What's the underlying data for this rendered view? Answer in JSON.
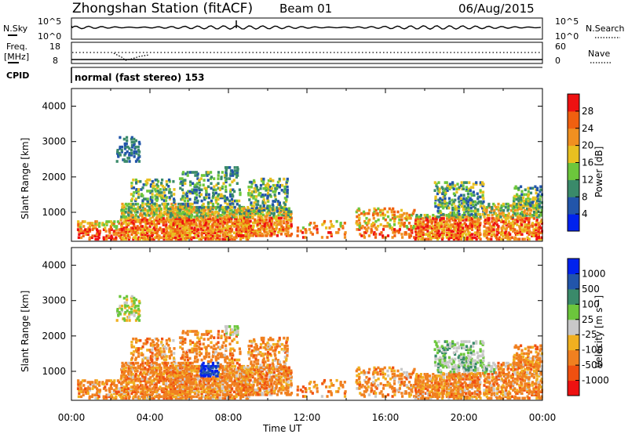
{
  "header": {
    "station": "Zhongshan Station (fitACF)",
    "beam": "Beam 01",
    "date": "06/Aug/2015"
  },
  "noise_panel": {
    "left_label": "N.Sky",
    "left_ticks": [
      "10^5",
      "10^0"
    ],
    "right_label": "N.Search",
    "right_ticks": [
      "10^5",
      "10^0"
    ]
  },
  "freq_panel": {
    "left_label_1": "Freq.",
    "left_label_2": "[MHz]",
    "left_ticks": [
      "18",
      "8"
    ],
    "right_label": "Nave",
    "right_ticks": [
      "60",
      "0"
    ]
  },
  "cpid_panel": {
    "label": "CPID",
    "text": "normal (fast stereo) 153"
  },
  "chart_data": [
    {
      "type": "heatmap",
      "name": "power",
      "ylabel": "Slant Range [km]",
      "ylim": [
        180,
        4500
      ],
      "yticks": [
        "1000",
        "2000",
        "3000",
        "4000"
      ],
      "xlim": [
        0,
        24
      ],
      "colorbar_label": "Power [dB]",
      "colorbar_ticks": [
        "4",
        "8",
        "12",
        "16",
        "20",
        "24",
        "28"
      ],
      "colors": [
        "#0022ee",
        "#2255aa",
        "#3a8a6a",
        "#6cc63c",
        "#e8c020",
        "#f09020",
        "#f06010",
        "#ee1111"
      ]
    },
    {
      "type": "heatmap",
      "name": "velocity",
      "ylabel": "Slant Range [km]",
      "ylim": [
        180,
        4500
      ],
      "yticks": [
        "1000",
        "2000",
        "3000",
        "4000"
      ],
      "xlim": [
        0,
        24
      ],
      "xlabel": "Time UT",
      "xticks": [
        "00:00",
        "04:00",
        "08:00",
        "12:00",
        "16:00",
        "20:00",
        "00:00"
      ],
      "colorbar_label": "Velocity [m s⁻¹]",
      "colorbar_ticks": [
        "1000",
        "500",
        "100",
        "25",
        "-25",
        "-100",
        "-500",
        "-1000"
      ],
      "colors": [
        "#ee1111",
        "#f05010",
        "#f08020",
        "#f0b020",
        "#c8c8c8",
        "#6cc63c",
        "#3a8a6a",
        "#2255aa",
        "#0022ee"
      ]
    }
  ]
}
